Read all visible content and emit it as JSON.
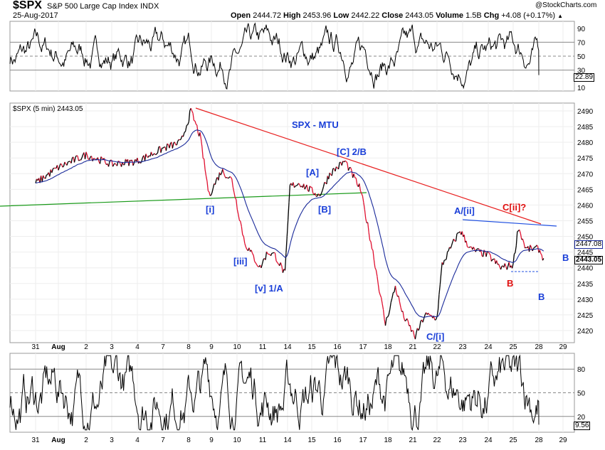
{
  "header": {
    "symbol": "$SPX",
    "name": "S&P 500 Large Cap Index",
    "exchange": "INDX",
    "date": "25-Aug-2017",
    "brand": "@StockCharts.com",
    "open_label": "Open",
    "open": "2444.72",
    "high_label": "High",
    "high": "2453.96",
    "low_label": "Low",
    "low": "2442.22",
    "close_label": "Close",
    "close": "2443.05",
    "volume_label": "Volume",
    "volume": "1.5B",
    "chg_label": "Chg",
    "chg": "+4.08 (+0.17%)",
    "chg_arrow": "▲"
  },
  "main_panel": {
    "legend": "$SPX (5 min) 2443.05",
    "title": "SPX - MTU",
    "ma_last": "2447.08",
    "close_last": "2443.05",
    "annotations": {
      "i": "[i]",
      "iii": "[iii]",
      "v": "[v] 1/A",
      "A": "[A]",
      "B": "[B]",
      "C2B": "[C] 2/B",
      "Ci": "C/[i]",
      "Aii": "A/[ii]",
      "Cii": "C[ii]?",
      "b_red": "B",
      "b_blue1": "B",
      "b_blue2": "B"
    }
  },
  "top_panel": {
    "last": "22.89",
    "ticks": [
      "90",
      "70",
      "50",
      "30",
      "10"
    ]
  },
  "bottom_panel": {
    "last": "9.56",
    "ticks": [
      "80",
      "50",
      "20"
    ]
  },
  "colors": {
    "price_up": "#000000",
    "price_down": "#e01030",
    "ma": "#1a2a9a",
    "trendline_red": "#e82020",
    "trendline_green": "#1a9a1a",
    "trendline_blue": "#2050e0",
    "label_blue": "#1a3fd8",
    "label_red": "#e01010"
  },
  "chart_data": {
    "type": "line",
    "x_ticks": [
      "31",
      "Aug",
      "2",
      "3",
      "4",
      "7",
      "8",
      "9",
      "10",
      "11",
      "14",
      "15",
      "16",
      "17",
      "18",
      "21",
      "22",
      "23",
      "24",
      "25",
      "28",
      "29"
    ],
    "y_ticks": [
      "2490",
      "2485",
      "2480",
      "2475",
      "2470",
      "2465",
      "2460",
      "2455",
      "2450",
      "2445",
      "2440",
      "2435",
      "2430",
      "2425",
      "2420"
    ],
    "ylim": [
      2417,
      2493
    ],
    "price_path": [
      [
        0,
        2467
      ],
      [
        1,
        2472
      ],
      [
        2,
        2476
      ],
      [
        3,
        2473
      ],
      [
        4,
        2474
      ],
      [
        5,
        2478
      ],
      [
        5.7,
        2480
      ],
      [
        6.1,
        2490
      ],
      [
        6.5,
        2482
      ],
      [
        6.9,
        2463
      ],
      [
        7.4,
        2471
      ],
      [
        7.8,
        2468
      ],
      [
        8.3,
        2448
      ],
      [
        8.9,
        2440
      ],
      [
        9.2,
        2445
      ],
      [
        9.5,
        2444
      ],
      [
        9.9,
        2438
      ],
      [
        10.1,
        2466
      ],
      [
        10.5,
        2467
      ],
      [
        11.3,
        2463
      ],
      [
        11.7,
        2470
      ],
      [
        12.3,
        2474
      ],
      [
        12.9,
        2465
      ],
      [
        13.4,
        2445
      ],
      [
        13.9,
        2422
      ],
      [
        14.3,
        2434
      ],
      [
        14.6,
        2425
      ],
      [
        15.1,
        2418
      ],
      [
        15.5,
        2425
      ],
      [
        16.0,
        2424
      ],
      [
        16.2,
        2441
      ],
      [
        16.9,
        2452
      ],
      [
        17.3,
        2446
      ],
      [
        18.0,
        2444
      ],
      [
        18.5,
        2440
      ],
      [
        19.0,
        2441
      ],
      [
        19.2,
        2453
      ],
      [
        19.5,
        2446
      ],
      [
        20.0,
        2446
      ],
      [
        20.2,
        2443
      ]
    ],
    "top_oscillator": {
      "levels": [
        70,
        50,
        30
      ],
      "range": [
        0,
        100
      ],
      "last": 22.89
    },
    "bottom_oscillator": {
      "levels": [
        80,
        50,
        20
      ],
      "range": [
        0,
        100
      ],
      "last": 9.56
    }
  }
}
